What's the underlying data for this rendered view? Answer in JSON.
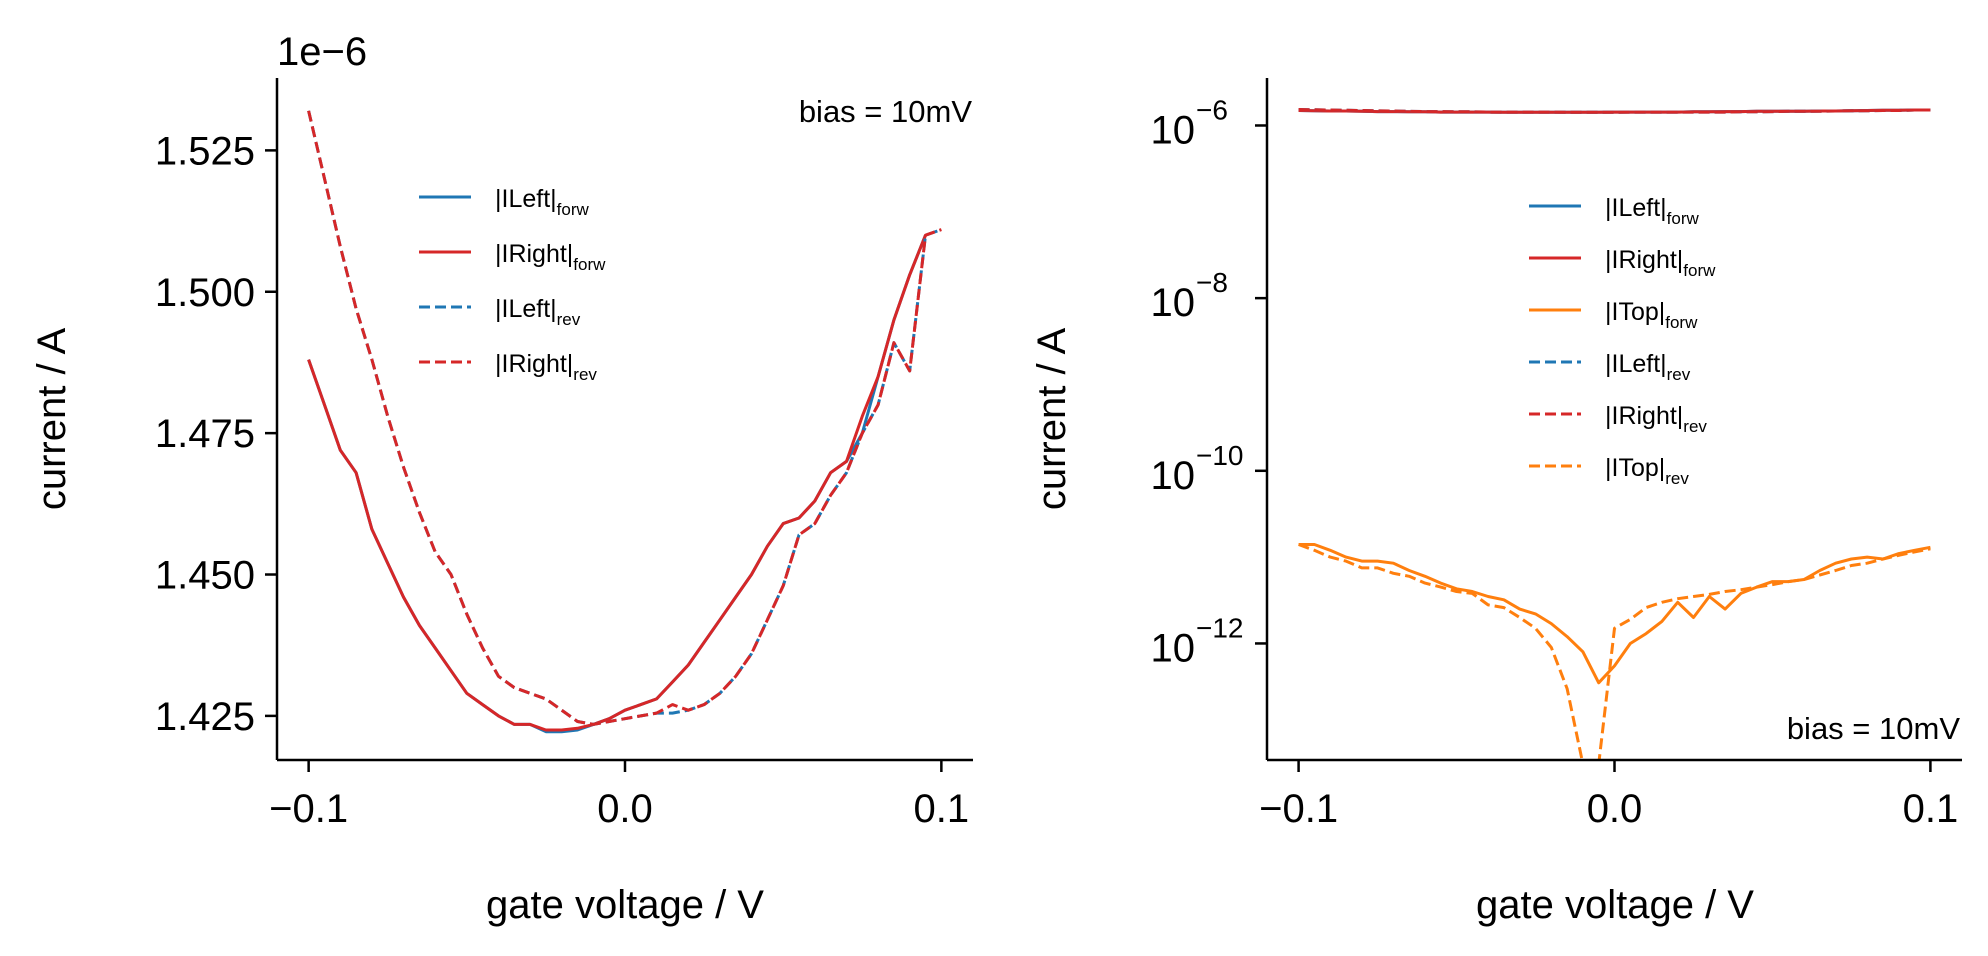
{
  "colors": {
    "blue": "#1f77b4",
    "red": "#d62728",
    "orange": "#ff7f0e"
  },
  "chart_data": [
    {
      "type": "line",
      "xlabel": "gate voltage / V",
      "ylabel": "current / A",
      "offset_text": "1e−6",
      "annotation": "bias = 10mV",
      "annotation_position": "top-right",
      "legend_position": "upper-center",
      "grid": false,
      "xlim": [
        -0.11,
        0.11
      ],
      "ylim": [
        1.4172,
        1.5378
      ],
      "x_ticks": [
        -0.1,
        0.0,
        0.1
      ],
      "x_tick_labels": [
        "−0.1",
        "0.0",
        "0.1"
      ],
      "y_ticks": [
        1.425,
        1.45,
        1.475,
        1.5,
        1.525
      ],
      "y_tick_labels": [
        "1.425",
        "1.450",
        "1.475",
        "1.500",
        "1.525"
      ],
      "x": [
        -0.1,
        -0.095,
        -0.09,
        -0.085,
        -0.08,
        -0.075,
        -0.07,
        -0.065,
        -0.06,
        -0.055,
        -0.05,
        -0.045,
        -0.04,
        -0.035,
        -0.03,
        -0.025,
        -0.02,
        -0.015,
        -0.01,
        -0.005,
        0.0,
        0.005,
        0.01,
        0.015,
        0.02,
        0.025,
        0.03,
        0.035,
        0.04,
        0.045,
        0.05,
        0.055,
        0.06,
        0.065,
        0.07,
        0.075,
        0.08,
        0.085,
        0.09,
        0.095,
        0.1
      ],
      "series": [
        {
          "name": "|ILeft|",
          "sub": "forw",
          "color": "blue",
          "dash": "solid",
          "values": [
            1.488,
            1.48,
            1.472,
            1.468,
            1.458,
            1.452,
            1.446,
            1.441,
            1.437,
            1.433,
            1.429,
            1.427,
            1.425,
            1.4235,
            1.4235,
            1.4222,
            1.4222,
            1.4225,
            1.4235,
            1.4245,
            1.426,
            1.427,
            1.428,
            1.431,
            1.434,
            1.438,
            1.442,
            1.446,
            1.45,
            1.455,
            1.459,
            1.46,
            1.463,
            1.468,
            1.47,
            1.475,
            1.485,
            1.495,
            1.503,
            1.51,
            null
          ]
        },
        {
          "name": "|IRight|",
          "sub": "forw",
          "color": "red",
          "dash": "solid",
          "values": [
            1.488,
            1.48,
            1.472,
            1.468,
            1.458,
            1.452,
            1.446,
            1.441,
            1.437,
            1.433,
            1.429,
            1.427,
            1.425,
            1.4235,
            1.4235,
            1.4225,
            1.4225,
            1.4228,
            1.4235,
            1.4245,
            1.426,
            1.427,
            1.428,
            1.431,
            1.434,
            1.438,
            1.442,
            1.446,
            1.45,
            1.455,
            1.459,
            1.46,
            1.463,
            1.468,
            1.47,
            1.478,
            1.485,
            1.495,
            1.503,
            1.51,
            null
          ]
        },
        {
          "name": "|ILeft|",
          "sub": "rev",
          "color": "blue",
          "dash": "dashed",
          "values": [
            1.532,
            1.52,
            1.508,
            1.497,
            1.488,
            1.478,
            1.469,
            1.461,
            1.454,
            1.45,
            1.443,
            1.437,
            1.432,
            1.43,
            1.429,
            1.428,
            1.426,
            1.424,
            1.4235,
            1.424,
            1.4245,
            1.425,
            1.4255,
            1.4255,
            1.426,
            1.427,
            1.429,
            1.432,
            1.436,
            1.442,
            1.448,
            1.457,
            1.459,
            1.464,
            1.468,
            1.475,
            1.48,
            1.491,
            1.486,
            1.51,
            1.511
          ]
        },
        {
          "name": "|IRight|",
          "sub": "rev",
          "color": "red",
          "dash": "dashed",
          "values": [
            1.532,
            1.52,
            1.508,
            1.497,
            1.488,
            1.478,
            1.469,
            1.461,
            1.454,
            1.45,
            1.443,
            1.437,
            1.432,
            1.43,
            1.429,
            1.428,
            1.426,
            1.424,
            1.4235,
            1.424,
            1.4245,
            1.425,
            1.4255,
            1.427,
            1.426,
            1.427,
            1.429,
            1.432,
            1.436,
            1.442,
            1.448,
            1.457,
            1.459,
            1.464,
            1.468,
            1.475,
            1.48,
            1.491,
            1.486,
            1.51,
            1.511
          ]
        }
      ]
    },
    {
      "type": "line",
      "xlabel": "gate voltage / V",
      "ylabel": "current / A",
      "annotation": "bias = 10mV",
      "annotation_position": "bottom-right",
      "legend_position": "center-right",
      "grid": false,
      "y_scale": "log",
      "xlim": [
        -0.11,
        0.11
      ],
      "ylim_log10": [
        -13.35,
        -5.45
      ],
      "x_ticks": [
        -0.1,
        0.0,
        0.1
      ],
      "x_tick_labels": [
        "−0.1",
        "0.0",
        "0.1"
      ],
      "y_ticks": [
        -6,
        -8,
        -10,
        -12
      ],
      "y_tick_labels": [
        "10",
        "10",
        "10",
        "10"
      ],
      "y_tick_exponents": [
        "−6",
        "−8",
        "−10",
        "−12"
      ],
      "x": [
        -0.1,
        -0.095,
        -0.09,
        -0.085,
        -0.08,
        -0.075,
        -0.07,
        -0.065,
        -0.06,
        -0.055,
        -0.05,
        -0.045,
        -0.04,
        -0.035,
        -0.03,
        -0.025,
        -0.02,
        -0.015,
        -0.01,
        -0.005,
        0.0,
        0.005,
        0.01,
        0.015,
        0.02,
        0.025,
        0.03,
        0.035,
        0.04,
        0.045,
        0.05,
        0.055,
        0.06,
        0.065,
        0.07,
        0.075,
        0.08,
        0.085,
        0.09,
        0.095,
        0.1
      ],
      "series": [
        {
          "name": "|ILeft|",
          "sub": "forw",
          "color": "blue",
          "dash": "solid",
          "values": [
            1.49e-06,
            1.48e-06,
            1.47e-06,
            1.47e-06,
            1.46e-06,
            1.45e-06,
            1.45e-06,
            1.44e-06,
            1.44e-06,
            1.43e-06,
            1.43e-06,
            1.43e-06,
            1.43e-06,
            1.42e-06,
            1.42e-06,
            1.42e-06,
            1.42e-06,
            1.42e-06,
            1.42e-06,
            1.42e-06,
            1.43e-06,
            1.43e-06,
            1.43e-06,
            1.43e-06,
            1.43e-06,
            1.44e-06,
            1.44e-06,
            1.45e-06,
            1.45e-06,
            1.46e-06,
            1.46e-06,
            1.46e-06,
            1.46e-06,
            1.47e-06,
            1.47e-06,
            1.48e-06,
            1.49e-06,
            1.5e-06,
            1.5e-06,
            1.51e-06,
            1.51e-06
          ]
        },
        {
          "name": "|IRight|",
          "sub": "forw",
          "color": "red",
          "dash": "solid",
          "values": [
            1.49e-06,
            1.48e-06,
            1.47e-06,
            1.47e-06,
            1.46e-06,
            1.45e-06,
            1.45e-06,
            1.44e-06,
            1.44e-06,
            1.43e-06,
            1.43e-06,
            1.43e-06,
            1.43e-06,
            1.42e-06,
            1.42e-06,
            1.42e-06,
            1.42e-06,
            1.42e-06,
            1.42e-06,
            1.42e-06,
            1.43e-06,
            1.43e-06,
            1.43e-06,
            1.43e-06,
            1.43e-06,
            1.44e-06,
            1.44e-06,
            1.45e-06,
            1.45e-06,
            1.46e-06,
            1.46e-06,
            1.46e-06,
            1.46e-06,
            1.47e-06,
            1.47e-06,
            1.48e-06,
            1.49e-06,
            1.5e-06,
            1.5e-06,
            1.51e-06,
            1.51e-06
          ]
        },
        {
          "name": "|ITop|",
          "sub": "forw",
          "color": "orange",
          "dash": "solid",
          "values": [
            1.4e-11,
            1.4e-11,
            1.2e-11,
            1e-11,
            9e-12,
            9e-12,
            8.5e-12,
            7e-12,
            6e-12,
            5e-12,
            4.3e-12,
            4e-12,
            3.5e-12,
            3.2e-12,
            2.5e-12,
            2.2e-12,
            1.7e-12,
            1.2e-12,
            8e-13,
            3.5e-13,
            5.5e-13,
            1e-12,
            1.3e-12,
            1.8e-12,
            3e-12,
            2e-12,
            3.5e-12,
            2.5e-12,
            3.8e-12,
            4.5e-12,
            5.2e-12,
            5.2e-12,
            5.5e-12,
            7e-12,
            8.5e-12,
            9.5e-12,
            1e-11,
            9.5e-12,
            1.1e-11,
            1.2e-11,
            1.3e-11
          ]
        },
        {
          "name": "|ILeft|",
          "sub": "rev",
          "color": "blue",
          "dash": "dashed",
          "values": [
            1.53e-06,
            1.52e-06,
            1.51e-06,
            1.5e-06,
            1.49e-06,
            1.48e-06,
            1.47e-06,
            1.46e-06,
            1.45e-06,
            1.45e-06,
            1.44e-06,
            1.44e-06,
            1.43e-06,
            1.43e-06,
            1.43e-06,
            1.43e-06,
            1.43e-06,
            1.42e-06,
            1.42e-06,
            1.42e-06,
            1.42e-06,
            1.43e-06,
            1.43e-06,
            1.43e-06,
            1.43e-06,
            1.43e-06,
            1.43e-06,
            1.43e-06,
            1.44e-06,
            1.44e-06,
            1.45e-06,
            1.46e-06,
            1.46e-06,
            1.46e-06,
            1.47e-06,
            1.48e-06,
            1.48e-06,
            1.49e-06,
            1.49e-06,
            1.51e-06,
            1.51e-06
          ]
        },
        {
          "name": "|IRight|",
          "sub": "rev",
          "color": "red",
          "dash": "dashed",
          "values": [
            1.53e-06,
            1.52e-06,
            1.51e-06,
            1.5e-06,
            1.49e-06,
            1.48e-06,
            1.47e-06,
            1.46e-06,
            1.45e-06,
            1.45e-06,
            1.44e-06,
            1.44e-06,
            1.43e-06,
            1.43e-06,
            1.43e-06,
            1.43e-06,
            1.43e-06,
            1.42e-06,
            1.42e-06,
            1.42e-06,
            1.42e-06,
            1.43e-06,
            1.43e-06,
            1.43e-06,
            1.43e-06,
            1.43e-06,
            1.43e-06,
            1.43e-06,
            1.44e-06,
            1.44e-06,
            1.45e-06,
            1.46e-06,
            1.46e-06,
            1.46e-06,
            1.47e-06,
            1.48e-06,
            1.48e-06,
            1.49e-06,
            1.49e-06,
            1.51e-06,
            1.51e-06
          ]
        },
        {
          "name": "|ITop|",
          "sub": "rev",
          "color": "orange",
          "dash": "dashed",
          "values": [
            1.4e-11,
            1.2e-11,
            1e-11,
            9e-12,
            7.5e-12,
            7.5e-12,
            6.5e-12,
            6e-12,
            5e-12,
            4.5e-12,
            4e-12,
            3.8e-12,
            2.8e-12,
            2.6e-12,
            2e-12,
            1.5e-12,
            9e-13,
            3e-13,
            4e-14,
            4e-14,
            1.5e-12,
            1.9e-12,
            2.6e-12,
            3e-12,
            3.3e-12,
            3.5e-12,
            3.7e-12,
            4e-12,
            4.2e-12,
            4.5e-12,
            4.8e-12,
            5.2e-12,
            5.5e-12,
            6.2e-12,
            7e-12,
            8e-12,
            8.5e-12,
            9.5e-12,
            1.05e-11,
            1.15e-11,
            1.25e-11
          ]
        }
      ]
    }
  ]
}
